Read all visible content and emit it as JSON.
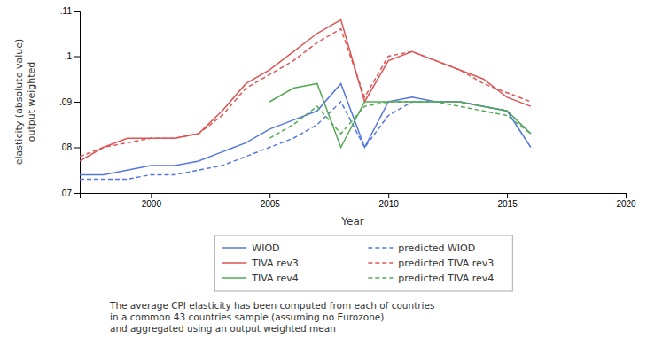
{
  "chart_data": {
    "type": "line",
    "xlabel": "Year",
    "ylabel": "elasticity (absolute value)\noutput weighted",
    "annotations": [
      "The average CPI elasticity has been computed from each of countries\nin a common 43 countries sample (assuming no Eurozone)\nand aggregated using an output weighted mean"
    ],
    "xlim": [
      1997,
      2020
    ],
    "xticks": [
      2000,
      2005,
      2010,
      2015,
      2020
    ],
    "ylim": [
      0.07,
      0.11
    ],
    "yticks": [
      {
        "value": 0.07,
        "label": ".07"
      },
      {
        "value": 0.08,
        "label": ".08"
      },
      {
        "value": 0.09,
        "label": ".09"
      },
      {
        "value": 0.1,
        "label": ".1"
      },
      {
        "value": 0.11,
        "label": ".11"
      }
    ],
    "grid": false,
    "series": [
      {
        "name": "WIOD",
        "color": "#5577dd",
        "line_style": "solid",
        "x": [
          1997,
          1998,
          1999,
          2000,
          2001,
          2002,
          2003,
          2004,
          2005,
          2006,
          2007,
          2008,
          2009,
          2010,
          2011,
          2012,
          2013,
          2014,
          2015,
          2016
        ],
        "values": [
          0.074,
          0.074,
          0.075,
          0.076,
          0.076,
          0.077,
          0.079,
          0.081,
          0.084,
          0.086,
          0.088,
          0.094,
          0.08,
          0.09,
          0.091,
          0.09,
          0.09,
          0.089,
          0.088,
          0.08
        ]
      },
      {
        "name": "predicted WIOD",
        "color": "#5577dd",
        "line_style": "dashed",
        "x": [
          1997,
          1998,
          1999,
          2000,
          2001,
          2002,
          2003,
          2004,
          2005,
          2006,
          2007,
          2008,
          2009,
          2010,
          2011,
          2012,
          2013,
          2014,
          2015,
          2016
        ],
        "values": [
          0.073,
          0.073,
          0.073,
          0.074,
          0.074,
          0.075,
          0.076,
          0.078,
          0.08,
          0.082,
          0.085,
          0.09,
          0.08,
          0.087,
          0.09,
          0.09,
          0.09,
          0.089,
          0.088,
          0.083
        ]
      },
      {
        "name": "TIVA rev3",
        "color": "#dd5555",
        "line_style": "solid",
        "x": [
          1997,
          1998,
          1999,
          2000,
          2001,
          2002,
          2003,
          2004,
          2005,
          2006,
          2007,
          2008,
          2009,
          2010,
          2011,
          2012,
          2013,
          2014,
          2015,
          2016
        ],
        "values": [
          0.077,
          0.08,
          0.082,
          0.082,
          0.082,
          0.083,
          0.088,
          0.094,
          0.097,
          0.101,
          0.105,
          0.108,
          0.09,
          0.099,
          0.101,
          0.099,
          0.097,
          0.095,
          0.091,
          0.089
        ]
      },
      {
        "name": "predicted TIVA rev3",
        "color": "#dd5555",
        "line_style": "dashed",
        "x": [
          1997,
          1998,
          1999,
          2000,
          2001,
          2002,
          2003,
          2004,
          2005,
          2006,
          2007,
          2008,
          2009,
          2010,
          2011,
          2012,
          2013,
          2014,
          2015,
          2016
        ],
        "values": [
          0.078,
          0.08,
          0.081,
          0.082,
          0.082,
          0.083,
          0.087,
          0.093,
          0.096,
          0.099,
          0.103,
          0.106,
          0.091,
          0.1,
          0.101,
          0.099,
          0.097,
          0.094,
          0.092,
          0.09
        ]
      },
      {
        "name": "TIVA rev4",
        "color": "#55aa55",
        "line_style": "solid",
        "x": [
          2005,
          2006,
          2007,
          2008,
          2009,
          2010,
          2011,
          2012,
          2013,
          2014,
          2015,
          2016
        ],
        "values": [
          0.09,
          0.093,
          0.094,
          0.08,
          0.09,
          0.09,
          0.09,
          0.09,
          0.09,
          0.089,
          0.088,
          0.083
        ]
      },
      {
        "name": "predicted TIVA rev4",
        "color": "#55aa55",
        "line_style": "dashed",
        "x": [
          2005,
          2006,
          2007,
          2008,
          2009,
          2010,
          2011,
          2012,
          2013,
          2014,
          2015,
          2016
        ],
        "values": [
          0.082,
          0.085,
          0.089,
          0.083,
          0.089,
          0.09,
          0.09,
          0.09,
          0.089,
          0.088,
          0.087,
          0.083
        ]
      }
    ]
  }
}
